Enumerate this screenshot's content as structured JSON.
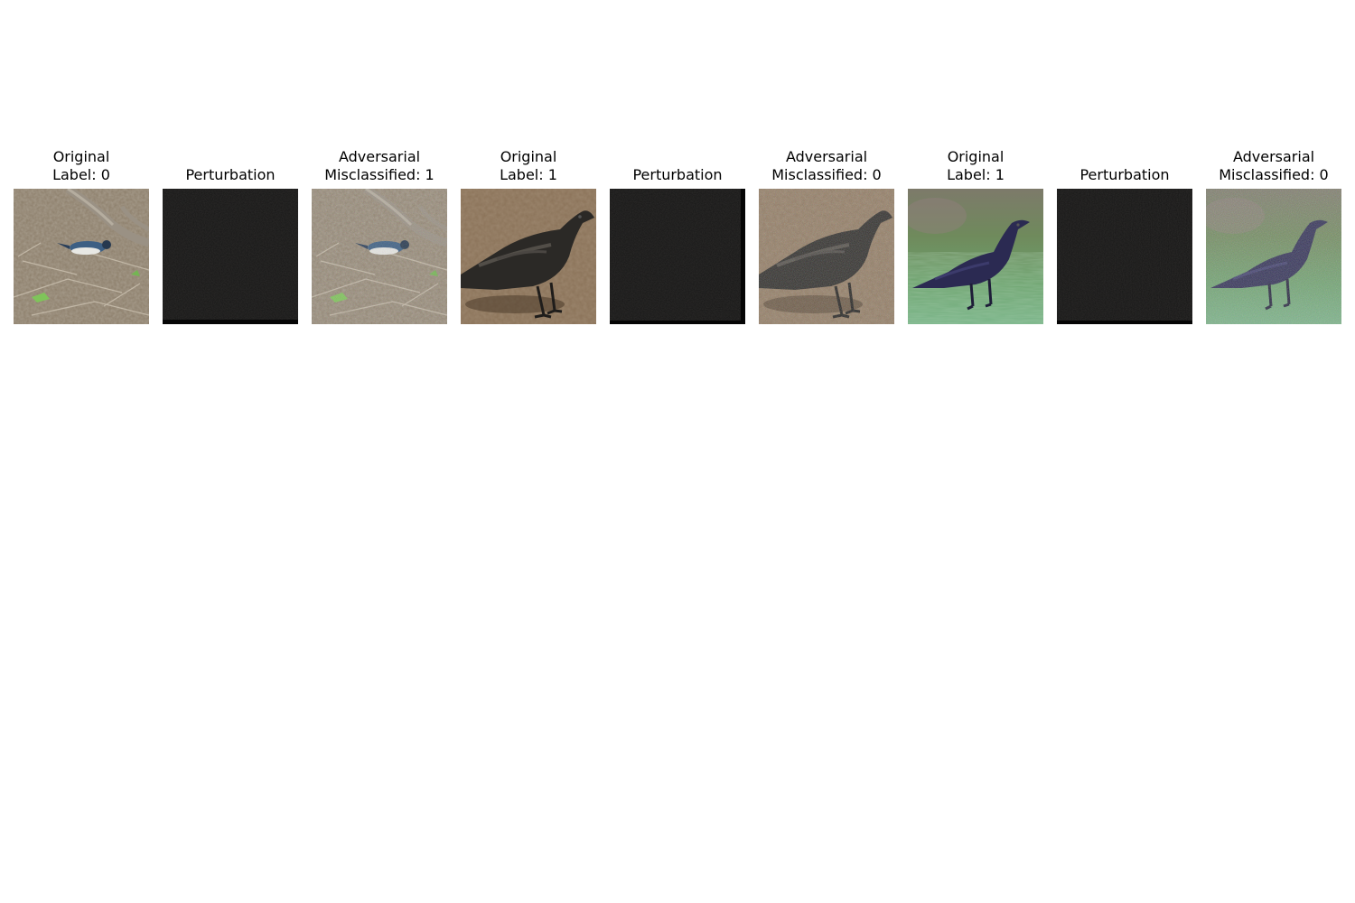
{
  "figure": {
    "panels": [
      {
        "title_line1": "Original",
        "title_line2": "Label: 0",
        "image": "warbler-on-forest-floor-photo"
      },
      {
        "title_line1": "",
        "title_line2": "Perturbation",
        "image": "perturbation-noise-dark"
      },
      {
        "title_line1": "Adversarial",
        "title_line2": "Misclassified: 1",
        "image": "warbler-adversarial-noisy-photo"
      },
      {
        "title_line1": "Original",
        "title_line2": "Label: 1",
        "image": "crow-on-dirt-photo"
      },
      {
        "title_line1": "",
        "title_line2": "Perturbation",
        "image": "perturbation-noise-dark"
      },
      {
        "title_line1": "Adversarial",
        "title_line2": "Misclassified: 0",
        "image": "crow-on-dirt-adversarial-photo"
      },
      {
        "title_line1": "Original",
        "title_line2": "Label: 1",
        "image": "crow-on-grass-photo"
      },
      {
        "title_line1": "",
        "title_line2": "Perturbation",
        "image": "perturbation-noise-dark"
      },
      {
        "title_line1": "Adversarial",
        "title_line2": "Misclassified: 0",
        "image": "crow-on-grass-adversarial-photo"
      }
    ]
  }
}
